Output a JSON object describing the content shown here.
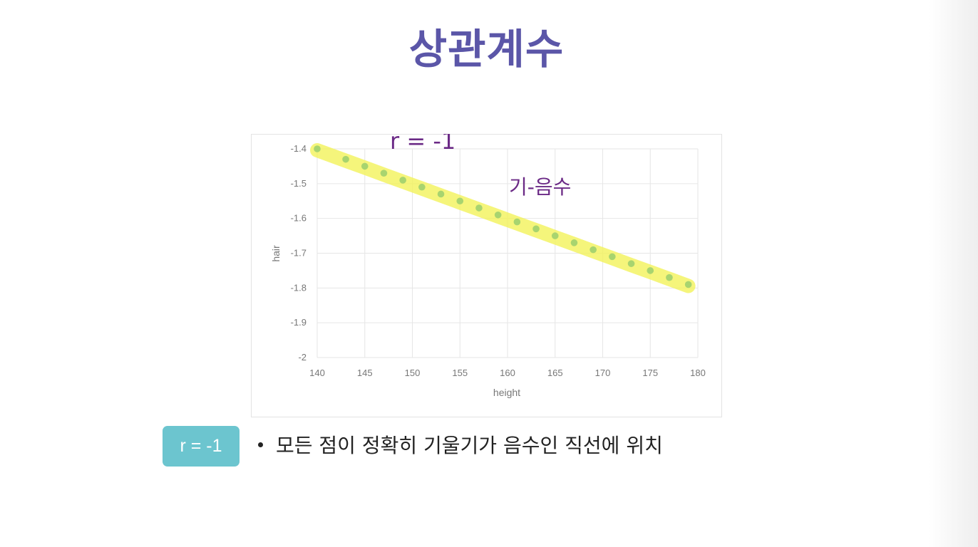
{
  "slide": {
    "title": "상관계수",
    "badge": "r = -1",
    "bullet": "모든 점이 정확히 기울기가 음수인 직선에 위치"
  },
  "annotations": {
    "r_label": "r = -1",
    "slope_label": "기-음수",
    "highlight_color": "#f3f35a",
    "ink_color": "#6b2a86"
  },
  "chart_data": {
    "type": "scatter",
    "xlabel": "height",
    "ylabel": "hair",
    "xlim": [
      140,
      180
    ],
    "ylim": [
      -2,
      -1.4
    ],
    "xticks": [
      140,
      145,
      150,
      155,
      160,
      165,
      170,
      175,
      180
    ],
    "yticks": [
      -1.4,
      -1.5,
      -1.6,
      -1.7,
      -1.8,
      -1.9,
      -2
    ],
    "ytick_labels": [
      "-1.4",
      "-1.5",
      "-1.6",
      "-1.7",
      "-1.8",
      "-1.9",
      "-2"
    ],
    "grid": true,
    "marker_color": "#a8d46f",
    "series": [
      {
        "x": [
          140,
          143,
          145,
          147,
          149,
          151,
          153,
          155,
          157,
          159,
          161,
          163,
          165,
          167,
          169,
          171,
          173,
          175,
          177,
          179
        ],
        "y": [
          -1.4,
          -1.43,
          -1.45,
          -1.47,
          -1.49,
          -1.51,
          -1.53,
          -1.55,
          -1.57,
          -1.59,
          -1.61,
          -1.63,
          -1.65,
          -1.67,
          -1.69,
          -1.71,
          -1.73,
          -1.75,
          -1.77,
          -1.79
        ]
      }
    ]
  }
}
